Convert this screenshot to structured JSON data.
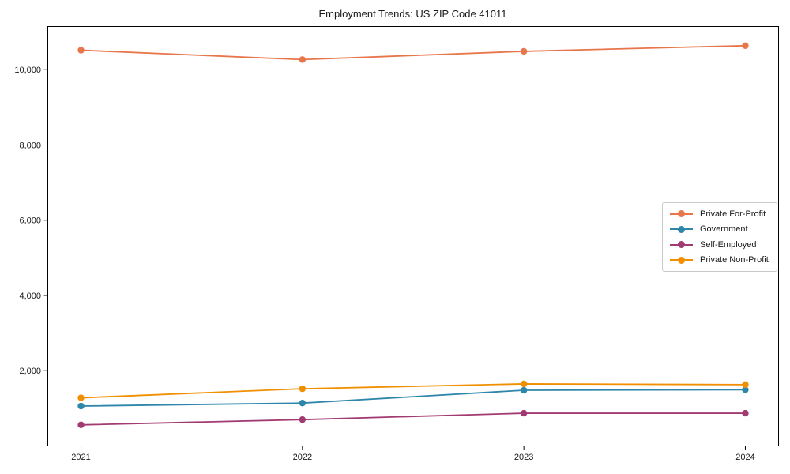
{
  "chart_data": {
    "type": "line",
    "title": "Employment Trends: US ZIP Code 41011",
    "x": [
      2021,
      2022,
      2023,
      2024
    ],
    "x_labels": [
      "2021",
      "2022",
      "2023",
      "2024"
    ],
    "series": [
      {
        "name": "Private For-Profit",
        "color": "#E8764B",
        "values": [
          10520,
          10270,
          10490,
          10640
        ]
      },
      {
        "name": "Government",
        "color": "#2E86AB",
        "values": [
          1060,
          1140,
          1480,
          1495
        ]
      },
      {
        "name": "Self-Employed",
        "color": "#A23B72",
        "values": [
          560,
          700,
          870,
          870
        ]
      },
      {
        "name": "Private Non-Profit",
        "color": "#F18F01",
        "values": [
          1280,
          1520,
          1650,
          1630
        ]
      }
    ],
    "yticks": [
      2000,
      4000,
      6000,
      8000,
      10000
    ],
    "ytick_labels": [
      "2,000",
      "4,000",
      "6,000",
      "8,000",
      "10,000"
    ],
    "ylim": [
      0,
      11150
    ],
    "xlim": [
      2020.85,
      2024.15
    ],
    "legend_position": "center right",
    "grid": false,
    "marker": "circle",
    "axis_color": "#000000",
    "text_color": "#1a1a1a"
  }
}
